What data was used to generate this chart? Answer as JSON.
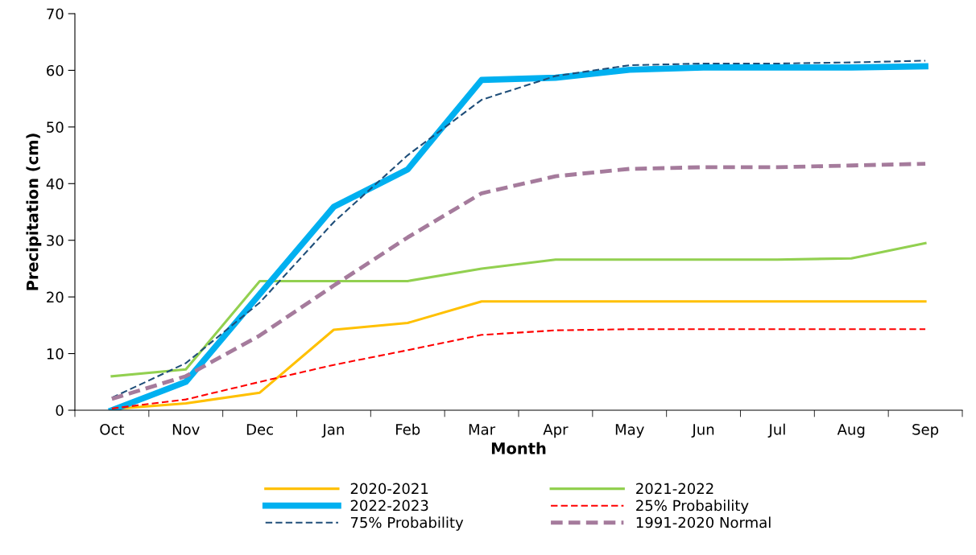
{
  "chart_data": {
    "type": "line",
    "xlabel": "Month",
    "ylabel": "Precipitation (cm)",
    "categories": [
      "Oct",
      "Nov",
      "Dec",
      "Jan",
      "Feb",
      "Mar",
      "Apr",
      "May",
      "Jun",
      "Jul",
      "Aug",
      "Sep"
    ],
    "ylim": [
      0,
      70
    ],
    "yticks": [
      0,
      10,
      20,
      30,
      40,
      50,
      60,
      70
    ],
    "grid": false,
    "legend": "bottom",
    "marker": "none",
    "series": [
      {
        "name": "2020-2021",
        "color": "#ffc000",
        "line_style": "solid",
        "values": [
          0.2,
          1.2,
          3.1,
          14.2,
          15.4,
          19.2,
          19.2,
          19.2,
          19.2,
          19.2,
          19.2,
          19.2
        ]
      },
      {
        "name": "2021-2022",
        "color": "#92d050",
        "line_style": "solid",
        "values": [
          6.0,
          7.2,
          22.8,
          22.8,
          22.8,
          25.0,
          26.6,
          26.6,
          26.6,
          26.6,
          26.8,
          29.5
        ]
      },
      {
        "name": "2022-2023",
        "color": "#00b0f0",
        "line_style": "solid",
        "values": [
          0.0,
          5.0,
          20.5,
          35.9,
          42.5,
          58.3,
          58.7,
          60.1,
          60.5,
          60.5,
          60.5,
          60.7
        ]
      },
      {
        "name": "25% Probability",
        "color": "#ff0000",
        "line_style": "dashed",
        "values": [
          0.3,
          1.9,
          5.0,
          8.0,
          10.6,
          13.3,
          14.1,
          14.3,
          14.3,
          14.3,
          14.3,
          14.3
        ]
      },
      {
        "name": "75% Probability",
        "color": "#1f4e79",
        "line_style": "dashed",
        "values": [
          2.2,
          8.3,
          19.0,
          33.2,
          45.0,
          54.8,
          59.0,
          60.9,
          61.2,
          61.2,
          61.4,
          61.7
        ]
      },
      {
        "name": "1991-2020 Normal",
        "color": "#a57b9c",
        "line_style": "dashed",
        "values": [
          2.0,
          6.0,
          13.2,
          22.0,
          30.5,
          38.3,
          41.3,
          42.6,
          42.9,
          42.9,
          43.2,
          43.5
        ]
      }
    ]
  }
}
